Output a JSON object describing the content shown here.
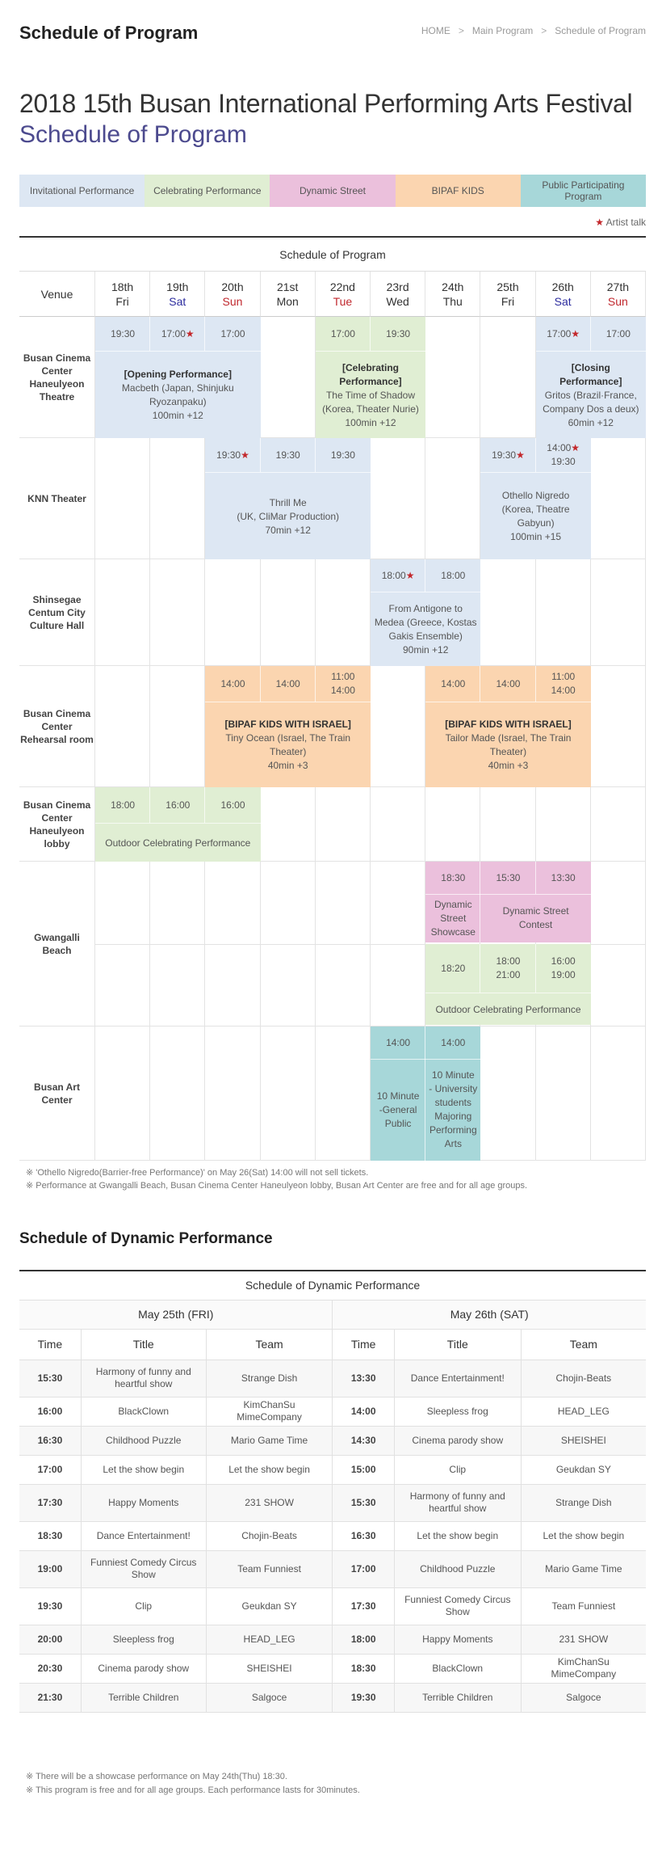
{
  "header": {
    "title": "Schedule of Program",
    "breadcrumb": [
      "HOME",
      "Main Program",
      "Schedule of Program"
    ]
  },
  "hero": {
    "line1": "2018 15th Busan International Performing Arts Festival",
    "line2": "Schedule of Program"
  },
  "legend": [
    {
      "label": "Invitational Performance",
      "color": "#dde7f3"
    },
    {
      "label": "Celebrating Performance",
      "color": "#e0eed3"
    },
    {
      "label": "Dynamic Street",
      "color": "#ebc0dc"
    },
    {
      "label": "BIPAF KIDS",
      "color": "#fbd5b0"
    },
    {
      "label": "Public Participating Program",
      "color": "#a7d7d9"
    }
  ],
  "artist_talk": "Artist talk",
  "schedule": {
    "caption": "Schedule of Program",
    "venue_header": "Venue",
    "days": [
      {
        "date": "18th",
        "wd": "Fri",
        "kind": ""
      },
      {
        "date": "19th",
        "wd": "Sat",
        "kind": "sat"
      },
      {
        "date": "20th",
        "wd": "Sun",
        "kind": "sun"
      },
      {
        "date": "21st",
        "wd": "Mon",
        "kind": ""
      },
      {
        "date": "22nd",
        "wd": "Tue",
        "kind": "sun"
      },
      {
        "date": "23rd",
        "wd": "Wed",
        "kind": ""
      },
      {
        "date": "24th",
        "wd": "Thu",
        "kind": ""
      },
      {
        "date": "25th",
        "wd": "Fri",
        "kind": ""
      },
      {
        "date": "26th",
        "wd": "Sat",
        "kind": "sat"
      },
      {
        "date": "27th",
        "wd": "Sun",
        "kind": "sun"
      }
    ],
    "venues": [
      "Busan Cinema Center Haneulyeon Theatre",
      "KNN Theater",
      "Shinsegae Centum City Culture Hall",
      "Busan Cinema Center Rehearsal room",
      "Busan Cinema Center Haneulyeon lobby",
      "Gwangalli Beach",
      "Busan Art Center"
    ],
    "b1": {
      "t1": "19:30",
      "t2": "17:00",
      "t3": "17:00",
      "bold": "[Opening Performance]",
      "l1": "Macbeth (Japan, Shinjuku",
      "l2": "Ryozanpaku)",
      "l3": "100min +12"
    },
    "b2": {
      "t1": "17:00",
      "t2": "19:30",
      "bold1": "[Celebrating",
      "bold2": "Performance]",
      "l1": "The Time of Shadow",
      "l2": "(Korea, Theater Nurie)",
      "l3": "100min +12"
    },
    "b3": {
      "t1": "17:00",
      "t2": "17:00",
      "bold": "[Closing Performance]",
      "l1": "Gritos (Brazil·France,",
      "l2": "Company Dos a deux)",
      "l3": "60min +12"
    },
    "b4": {
      "t1": "19:30",
      "t2": "19:30",
      "t3": "19:30",
      "l1": "Thrill Me",
      "l2": "(UK, CliMar Production)",
      "l3": "70min +12"
    },
    "b5": {
      "t1": "19:30",
      "t2a": "14:00",
      "t2b": "19:30",
      "l1": "Othello Nigredo",
      "l2": "(Korea, Theatre",
      "l3": "Gabyun)",
      "l4": "100min +15"
    },
    "b6": {
      "t1": "18:00",
      "t2": "18:00",
      "l1": "From Antigone to",
      "l2": "Medea (Greece, Kostas",
      "l3": "Gakis Ensemble)",
      "l4": "90min +12"
    },
    "b7": {
      "t1": "14:00",
      "t2": "14:00",
      "t3a": "11:00",
      "t3b": "14:00",
      "bold": "[BIPAF KIDS WITH ISRAEL]",
      "l1": "Tiny Ocean (Israel, The Train Theater)",
      "l2": "40min +3"
    },
    "b8": {
      "t1": "14:00",
      "t2": "14:00",
      "t3a": "11:00",
      "t3b": "14:00",
      "bold": "[BIPAF KIDS WITH ISRAEL]",
      "l1": "Tailor Made (Israel, The Train",
      "l2": "Theater)",
      "l3": "40min +3"
    },
    "b9": {
      "t1": "18:00",
      "t2": "16:00",
      "t3": "16:00",
      "l1": "Outdoor Celebrating Performance"
    },
    "b10": {
      "t1": "18:30",
      "t2": "15:30",
      "t3": "13:30",
      "l1a": "Dynamic",
      "l1b": "Street",
      "l1c": "Showcase",
      "l2a": "Dynamic Street",
      "l2b": "Contest"
    },
    "b11": {
      "t1": "18:20",
      "t2a": "18:00",
      "t2b": "21:00",
      "t3a": "16:00",
      "t3b": "19:00",
      "l1": "Outdoor Celebrating Performance"
    },
    "b12": {
      "t1": "14:00",
      "t2": "14:00",
      "l1": [
        "10 Minute",
        "-General",
        "Public"
      ],
      "l2": [
        "10 Minute",
        "- University",
        "students",
        "Majoring",
        "Performing",
        "Arts"
      ]
    }
  },
  "notes1": [
    "※ 'Othello Nigredo(Barrier-free Performance)' on May 26(Sat) 14:00 will not sell tickets.",
    "※ Performance at Gwangalli Beach, Busan Cinema Center Haneulyeon lobby, Busan Art Center are free and for all age groups."
  ],
  "dynamic": {
    "title": "Schedule of Dynamic Performance",
    "caption": "Schedule of Dynamic Performance",
    "day1": "May 25th (FRI)",
    "day2": "May 26th (SAT)",
    "headers": [
      "Time",
      "Title",
      "Team",
      "Time",
      "Title",
      "Team"
    ],
    "rows": [
      [
        "15:30",
        "Harmony of funny and heartful show",
        "Strange Dish",
        "13:30",
        "Dance Entertainment!",
        "Chojin-Beats"
      ],
      [
        "16:00",
        "BlackClown",
        "KimChanSu MimeCompany",
        "14:00",
        "Sleepless frog",
        "HEAD_LEG"
      ],
      [
        "16:30",
        "Childhood Puzzle",
        "Mario Game Time",
        "14:30",
        "Cinema parody show",
        "SHEISHEI"
      ],
      [
        "17:00",
        "Let the show begin",
        "Let the show begin",
        "15:00",
        "Clip",
        "Geukdan SY"
      ],
      [
        "17:30",
        "Happy Moments",
        "231 SHOW",
        "15:30",
        "Harmony of funny and heartful show",
        "Strange Dish"
      ],
      [
        "18:30",
        "Dance Entertainment!",
        "Chojin-Beats",
        "16:30",
        "Let the show begin",
        "Let the show begin"
      ],
      [
        "19:00",
        "Funniest Comedy Circus Show",
        "Team Funniest",
        "17:00",
        "Childhood Puzzle",
        "Mario Game Time"
      ],
      [
        "19:30",
        "Clip",
        "Geukdan SY",
        "17:30",
        "Funniest Comedy Circus Show",
        "Team Funniest"
      ],
      [
        "20:00",
        "Sleepless frog",
        "HEAD_LEG",
        "18:00",
        "Happy Moments",
        "231 SHOW"
      ],
      [
        "20:30",
        "Cinema parody show",
        "SHEISHEI",
        "18:30",
        "BlackClown",
        "KimChanSu MimeCompany"
      ],
      [
        "21:30",
        "Terrible Children",
        "Salgoce",
        "19:30",
        "Terrible Children",
        "Salgoce"
      ]
    ]
  },
  "notes2": [
    "※ There will be a showcase performance on May 24th(Thu) 18:30.",
    "※ This program is free and for all age groups. Each performance lasts for 30minutes."
  ]
}
